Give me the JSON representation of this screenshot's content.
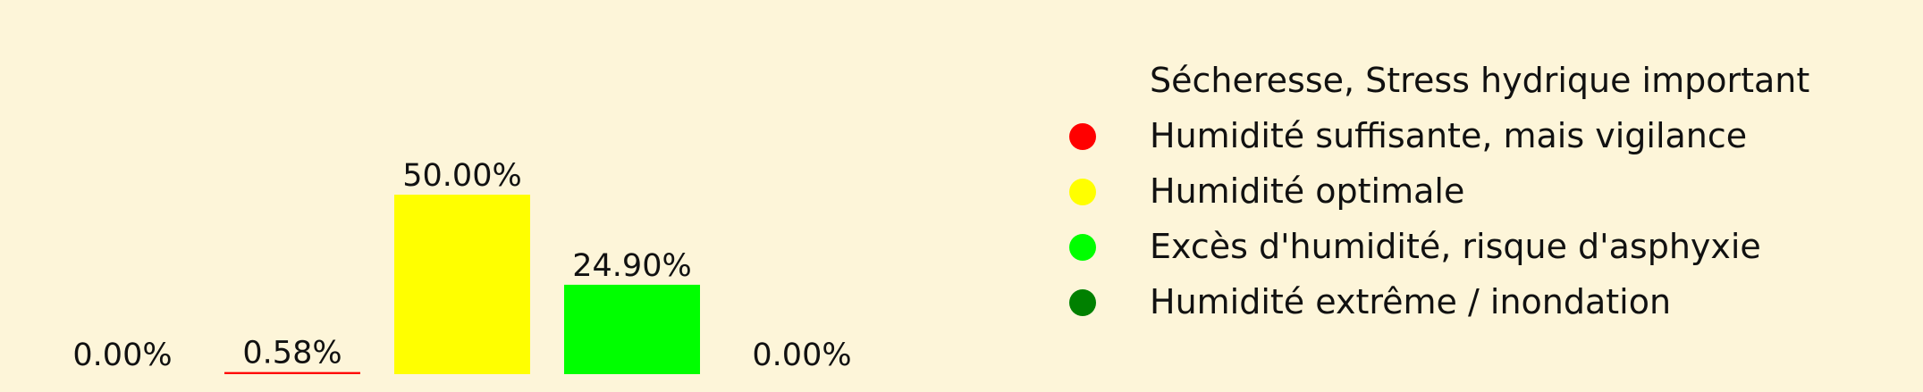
{
  "chart_data": {
    "type": "bar",
    "categories": [
      "Sécheresse, Stress hydrique important",
      "Humidité suffisante, mais vigilance",
      "Humidité optimale",
      "Excès d'humidité, risque d'asphyxie",
      "Humidité extrême / inondation"
    ],
    "values": [
      0.0,
      0.58,
      50.0,
      24.9,
      0.0
    ],
    "value_labels": [
      "0.00%",
      "0.58%",
      "50.00%",
      "24.90%",
      "0.00%"
    ],
    "colors": [
      "#ffffff",
      "#ff0000",
      "#ffff00",
      "#00ff00",
      "#008000"
    ],
    "legend": {
      "placement": "right",
      "entries": [
        {
          "label": "Sécheresse, Stress hydrique important",
          "color": "#fdf5d9"
        },
        {
          "label": "Humidité suffisante, mais vigilance",
          "color": "#ff0000"
        },
        {
          "label": "Humidité optimale",
          "color": "#ffff00"
        },
        {
          "label": "Excès d'humidité, risque d'asphyxie",
          "color": "#00ff00"
        },
        {
          "label": "Humidité extrême / inondation",
          "color": "#008000"
        }
      ]
    },
    "ylim": [
      0,
      50
    ],
    "grid": false,
    "title": "",
    "xlabel": "",
    "ylabel": ""
  },
  "background_color": "#fdf5d9"
}
